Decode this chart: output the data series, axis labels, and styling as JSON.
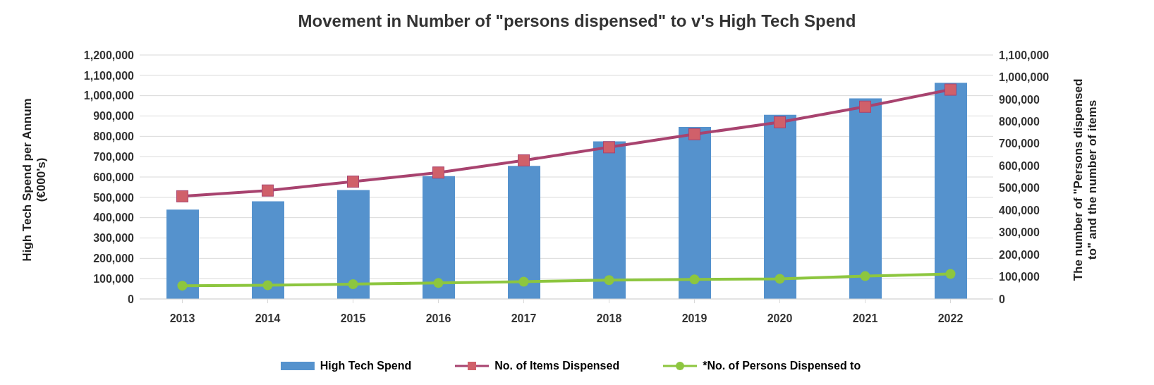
{
  "chart_data": {
    "type": "bar",
    "title": "Movement in Number of \"persons dispensed\" to v's High Tech Spend",
    "ylabel": "High Tech Spend per Annum (€000's)",
    "y2label": "The number of \"Persons dispensed to\" and the number of items",
    "categories": [
      "2013",
      "2014",
      "2015",
      "2016",
      "2017",
      "2018",
      "2019",
      "2020",
      "2021",
      "2022"
    ],
    "series": [
      {
        "name": "High Tech Spend",
        "color": "#5592cd",
        "values": [
          440000,
          480000,
          536000,
          604000,
          655000,
          775000,
          846000,
          906000,
          987000,
          1063000
        ]
      },
      {
        "name": "No. of Items Dispensed",
        "type": "line",
        "axis": "y2",
        "marker": "square",
        "color": "#a8436f",
        "values": [
          463000,
          489000,
          529000,
          570000,
          625000,
          684000,
          743000,
          797000,
          867000,
          944000
        ]
      },
      {
        "name": "*No. of Persons Dispensed to",
        "type": "line",
        "axis": "y2",
        "marker": "circle",
        "color": "#8dc63f",
        "values": [
          60000,
          62000,
          67000,
          72000,
          78000,
          85000,
          88000,
          91000,
          103000,
          113000
        ]
      }
    ],
    "ylim": [
      0,
      1200000
    ],
    "yticks": [
      0,
      {
        "value": 100000,
        "label": "100,000"
      },
      {
        "value": 200000,
        "label": "200,000"
      },
      {
        "value": 300000,
        "label": "300,000"
      },
      {
        "value": 400000,
        "label": "400,000"
      },
      {
        "value": 500000,
        "label": "500,000"
      },
      {
        "value": 600000,
        "label": "600,000"
      },
      {
        "value": 700000,
        "label": "700,000"
      },
      {
        "value": 800000,
        "label": "800,000"
      },
      {
        "value": 900000,
        "label": "900,000"
      },
      {
        "value": 1000000,
        "label": "1,000,000"
      },
      {
        "value": 1100000,
        "label": "1,100,000"
      },
      {
        "value": 1200000,
        "label": "1,200,000"
      }
    ],
    "y2lim": [
      0,
      1100000
    ],
    "y2ticks": [
      0,
      {
        "value": 100000,
        "label": "100,000"
      },
      {
        "value": 200000,
        "label": "200,000"
      },
      {
        "value": 300000,
        "label": "300,000"
      },
      {
        "value": 400000,
        "label": "400,000"
      },
      {
        "value": 500000,
        "label": "500,000"
      },
      {
        "value": 600000,
        "label": "600,000"
      },
      {
        "value": 700000,
        "label": "700,000"
      },
      {
        "value": 800000,
        "label": "800,000"
      },
      {
        "value": 900000,
        "label": "900,000"
      },
      {
        "value": 1000000,
        "label": "1,000,000"
      },
      {
        "value": 1100000,
        "label": "1,100,000"
      }
    ],
    "grid": "y",
    "legend": "bottom"
  }
}
